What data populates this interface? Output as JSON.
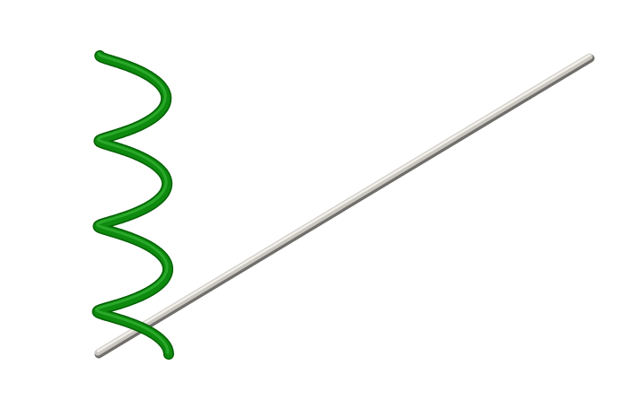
{
  "scene": {
    "background_color": "#ffffff",
    "objects": [
      {
        "name": "straight-rod",
        "shape": "cylinder",
        "color_light": "#ece9e3",
        "color_mid": "#c9c6bf",
        "color_shadow": "#6f6e6a"
      },
      {
        "name": "helix-coil",
        "shape": "helix",
        "turns": 3.5,
        "color_light": "#2aa82a",
        "color_mid": "#0e8a0e",
        "color_shadow": "#045f04"
      }
    ]
  }
}
